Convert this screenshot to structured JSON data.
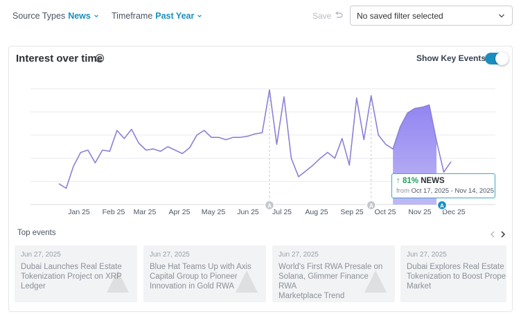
{
  "filters": {
    "source_types": {
      "label": "Source Types",
      "value": "News"
    },
    "timeframe": {
      "label": "Timeframe",
      "value": "Past Year"
    },
    "save_label": "Save",
    "saved_filter_placeholder": "No saved filter selected"
  },
  "card": {
    "title": "Interest over time",
    "show_key_events_label": "Show Key Events",
    "show_key_events_on": true
  },
  "chart_data": {
    "type": "area",
    "title": "Interest over time",
    "months": [
      "Jan 25",
      "Feb 25",
      "Mar 25",
      "Apr 25",
      "May 25",
      "Jun 25",
      "Jul 25",
      "Aug 25",
      "Sep 25",
      "Oct 25",
      "Nov 25",
      "Dec 25"
    ],
    "series": [
      {
        "values": [
          18,
          14,
          33,
          45,
          47,
          36,
          47,
          46,
          64,
          57,
          65,
          53,
          47,
          48,
          46,
          50,
          47,
          44,
          49,
          60,
          64,
          58,
          58,
          56,
          58,
          58,
          59,
          61,
          62,
          99,
          52,
          93,
          40,
          24,
          29,
          34,
          40,
          45,
          40,
          57,
          34,
          92,
          56,
          94,
          60,
          52,
          48,
          67,
          79,
          83,
          84,
          86,
          55,
          28,
          37
        ]
      }
    ],
    "ylim": [
      0,
      100
    ],
    "highlight": {
      "from": "Oct 17, 2025",
      "to": "Nov 14, 2025",
      "change": "81%",
      "label": "NEWS"
    },
    "key_events_marker_label": "A",
    "gridlines": true,
    "colors": {
      "line": "#8b80d6",
      "fill": "#8c7ff0",
      "accent": "#1a8fbf",
      "grid": "#e8eaed"
    }
  },
  "tooltip": {
    "arrow": "↑",
    "pct": "81%",
    "label": "NEWS",
    "from_word": "from",
    "range": "Oct 17, 2025 - Nov 14, 2025"
  },
  "top_events": {
    "title": "Top events",
    "items": [
      {
        "date": "Jun 27, 2025",
        "headline": "Dubai Launches Real Estate\nTokenization Project on XRP\nLedger"
      },
      {
        "date": "Jun 27, 2025",
        "headline": "Blue Hat Teams Up with Axis\nCapital Group to Pioneer\nInnovation in Gold RWA"
      },
      {
        "date": "Jun 27, 2025",
        "headline": "World's First RWA Presale on\nSolana, Glimmer Finance RWA\nMarketplace Trend"
      },
      {
        "date": "Jun 27, 2025",
        "headline": "Dubai Explores Real Estate\nTokenization to Boost Proper\nMarket"
      }
    ]
  }
}
